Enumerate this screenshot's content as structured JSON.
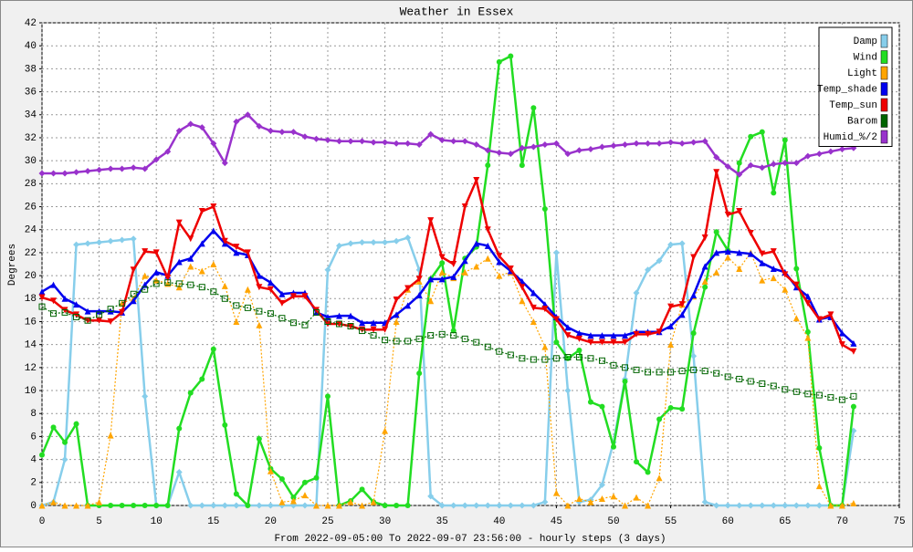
{
  "chart_data": {
    "type": "line",
    "title": "Weather in Essex",
    "y_label": "Degrees",
    "x_label": "From 2022-09-05:00 To 2022-09-07 23:56:00 - hourly steps (3 days)",
    "x": [
      0,
      1,
      2,
      3,
      4,
      5,
      6,
      7,
      8,
      9,
      10,
      11,
      12,
      13,
      14,
      15,
      16,
      17,
      18,
      19,
      20,
      21,
      22,
      23,
      24,
      25,
      26,
      27,
      28,
      29,
      30,
      31,
      32,
      33,
      34,
      35,
      36,
      37,
      38,
      39,
      40,
      41,
      42,
      43,
      44,
      45,
      46,
      47,
      48,
      49,
      50,
      51,
      52,
      53,
      54,
      55,
      56,
      57,
      58,
      59,
      60,
      61,
      62,
      63,
      64,
      65,
      66,
      67,
      68,
      69,
      70,
      71
    ],
    "xlim": [
      0,
      75
    ],
    "xticks": [
      0,
      5,
      10,
      15,
      20,
      25,
      30,
      35,
      40,
      45,
      50,
      55,
      60,
      65,
      70,
      75
    ],
    "ylim": [
      0,
      42
    ],
    "yticks": [
      0,
      2,
      4,
      6,
      8,
      10,
      12,
      14,
      16,
      18,
      20,
      22,
      24,
      26,
      28,
      30,
      32,
      34,
      36,
      38,
      40,
      42
    ],
    "grid": true,
    "legend": "top-right",
    "series": [
      {
        "name": "Damp",
        "color": "#87ceeb",
        "marker": "diamond",
        "dotted": false,
        "values": [
          0,
          0.3,
          4,
          22.7,
          22.8,
          22.9,
          23,
          23.1,
          23.2,
          9.5,
          0,
          0,
          2.9,
          0,
          0,
          0,
          0,
          0,
          0,
          0,
          0,
          0,
          0,
          0,
          0,
          20.5,
          22.6,
          22.8,
          22.9,
          22.9,
          22.9,
          23,
          23.3,
          20.5,
          0.8,
          0,
          0,
          0,
          0,
          0,
          0,
          0,
          0,
          0,
          0.3,
          22,
          10,
          0.3,
          0.5,
          1.8,
          5.5,
          11,
          18.5,
          20.5,
          21.3,
          22.7,
          22.8,
          13,
          0.3,
          0,
          0,
          0,
          0,
          0,
          0,
          0,
          0,
          0,
          0,
          0,
          0,
          6.5
        ]
      },
      {
        "name": "Wind",
        "color": "#22dd22",
        "marker": "circle",
        "dotted": false,
        "values": [
          4.4,
          6.8,
          5.5,
          7.1,
          0,
          0,
          0,
          0,
          0,
          0,
          0,
          0,
          6.7,
          9.8,
          11,
          13.6,
          7,
          1,
          0,
          5.8,
          3.2,
          2.3,
          0.7,
          2,
          2.4,
          9.5,
          0,
          0.4,
          1.4,
          0.3,
          0,
          0,
          0,
          11.5,
          19.7,
          21.1,
          15.2,
          21.5,
          22.5,
          29.6,
          38.6,
          39.1,
          29.6,
          34.6,
          25.8,
          14.2,
          12.8,
          13.5,
          9,
          8.6,
          5.1,
          10.8,
          3.8,
          2.9,
          7.5,
          8.5,
          8.4,
          15,
          19,
          23.8,
          22.2,
          29.8,
          32.1,
          32.5,
          27.2,
          31.8,
          20.6,
          15.1,
          5,
          0,
          0,
          8.6
        ]
      },
      {
        "name": "Light",
        "color": "#ffa500",
        "marker": "triangle",
        "dotted": true,
        "values": [
          0,
          0.3,
          0,
          0,
          0,
          0.3,
          6.1,
          17.6,
          18,
          20,
          19.6,
          19.3,
          19,
          20.8,
          20.4,
          21,
          19.1,
          16,
          18.8,
          15.7,
          3,
          0.3,
          0.4,
          0.9,
          0,
          0,
          0,
          0.3,
          0,
          0.3,
          6.5,
          16,
          18.8,
          19.5,
          17.8,
          20.3,
          19.8,
          20.3,
          20.8,
          21.5,
          20,
          20.3,
          17.8,
          16,
          13.8,
          1.1,
          0,
          0.6,
          0.3,
          0.6,
          0.8,
          0,
          0.7,
          0,
          2.4,
          14,
          17.5,
          18.2,
          19.5,
          20.3,
          21.6,
          20.6,
          22,
          19.6,
          19.8,
          18.8,
          16.3,
          14.6,
          1.7,
          0,
          0,
          0.2
        ]
      },
      {
        "name": "Temp_shade",
        "color": "#0000ee",
        "marker": "triangle",
        "dotted": false,
        "values": [
          18.6,
          19.2,
          18,
          17.5,
          16.9,
          16.9,
          16.9,
          16.8,
          17.8,
          19.2,
          20.3,
          20,
          21.2,
          21.5,
          22.8,
          23.9,
          22.8,
          22,
          21.8,
          20,
          19.4,
          18.4,
          18.5,
          18.5,
          16.8,
          16.4,
          16.5,
          16.5,
          15.9,
          15.9,
          15.9,
          16.6,
          17.4,
          18.3,
          19.7,
          19.7,
          19.9,
          21.3,
          22.8,
          22.6,
          21.2,
          20.4,
          19.5,
          18.5,
          17.5,
          16.4,
          15.5,
          15,
          14.8,
          14.8,
          14.8,
          14.8,
          15.1,
          15.1,
          15.1,
          15.6,
          16.6,
          18.3,
          20.8,
          22,
          22.1,
          22,
          21.9,
          21.1,
          20.6,
          20.3,
          19,
          18.2,
          16.2,
          16.4,
          15,
          14.1
        ]
      },
      {
        "name": "Temp_sun",
        "color": "#ee0000",
        "marker": "down-triangle",
        "dotted": false,
        "values": [
          18.1,
          17.8,
          17,
          16.6,
          16.1,
          16.1,
          16,
          16.8,
          20.5,
          22.1,
          22,
          19.8,
          24.6,
          23.2,
          25.6,
          26,
          23,
          22.5,
          22,
          19,
          18.8,
          17.6,
          18.2,
          18.2,
          17,
          15.8,
          15.8,
          15.6,
          15.3,
          15.3,
          15.3,
          17.9,
          18.9,
          19.7,
          24.8,
          21.6,
          21,
          26,
          28.3,
          24,
          21.7,
          20.6,
          19,
          17.2,
          17.1,
          16.2,
          14.8,
          14.5,
          14.2,
          14.2,
          14.2,
          14.2,
          14.9,
          14.9,
          15.1,
          17.3,
          17.5,
          21.6,
          23.3,
          29,
          25.3,
          25.6,
          23.7,
          21.9,
          22.1,
          20.1,
          19.2,
          17.6,
          16.2,
          16.6,
          14,
          13.4
        ]
      },
      {
        "name": "Barom",
        "color": "#006400",
        "marker": "square",
        "dotted": true,
        "values": [
          17.3,
          16.7,
          16.8,
          16.4,
          16.1,
          16.6,
          17.1,
          17.6,
          18.4,
          18.8,
          19.3,
          19.4,
          19.3,
          19.2,
          19,
          18.6,
          18,
          17.4,
          17.2,
          16.9,
          16.7,
          16.3,
          15.9,
          15.7,
          16.8,
          16,
          15.8,
          15.6,
          15.2,
          14.8,
          14.4,
          14.3,
          14.3,
          14.5,
          14.8,
          14.9,
          14.8,
          14.5,
          14.2,
          13.8,
          13.4,
          13.1,
          12.8,
          12.7,
          12.7,
          12.8,
          12.9,
          12.9,
          12.8,
          12.6,
          12.2,
          12,
          11.8,
          11.6,
          11.6,
          11.6,
          11.7,
          11.8,
          11.7,
          11.5,
          11.2,
          11,
          10.8,
          10.6,
          10.4,
          10.1,
          9.9,
          9.7,
          9.6,
          9.4,
          9.2,
          9.5
        ]
      },
      {
        "name": "Humid_%/2",
        "color": "#9932cc",
        "marker": "diamond",
        "dotted": false,
        "values": [
          28.9,
          28.9,
          28.9,
          29,
          29.1,
          29.2,
          29.3,
          29.3,
          29.4,
          29.3,
          30.1,
          30.8,
          32.6,
          33.2,
          32.9,
          31.5,
          29.8,
          33.4,
          34,
          33,
          32.6,
          32.5,
          32.5,
          32.1,
          31.9,
          31.8,
          31.7,
          31.7,
          31.7,
          31.6,
          31.6,
          31.5,
          31.5,
          31.4,
          32.3,
          31.8,
          31.7,
          31.7,
          31.4,
          30.9,
          30.7,
          30.6,
          31.1,
          31.2,
          31.4,
          31.5,
          30.6,
          30.9,
          31,
          31.2,
          31.3,
          31.4,
          31.5,
          31.5,
          31.5,
          31.6,
          31.5,
          31.6,
          31.7,
          30.3,
          29.5,
          28.8,
          29.6,
          29.4,
          29.7,
          29.8,
          29.8,
          30.4,
          30.6,
          30.8,
          31,
          31.1
        ]
      }
    ]
  }
}
